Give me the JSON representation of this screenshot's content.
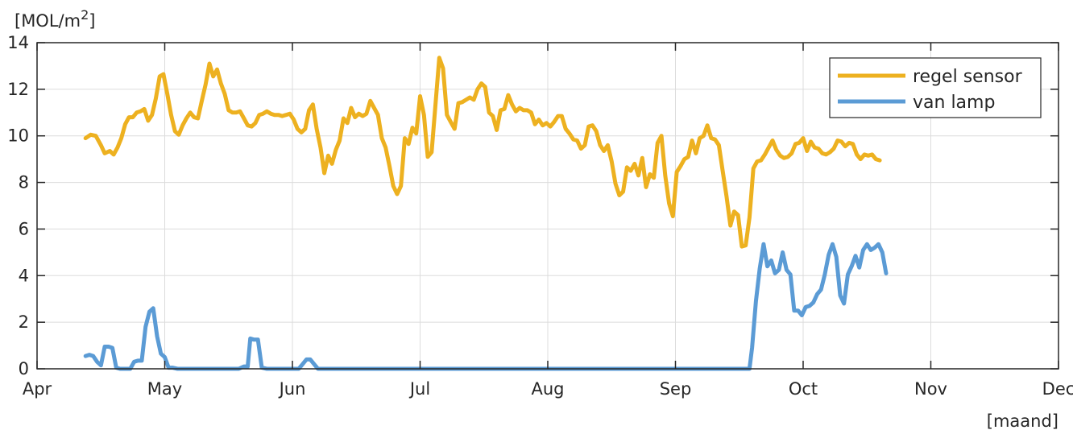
{
  "chart_data": {
    "type": "line",
    "title": "",
    "ylabel_base": "[MOL/m",
    "ylabel_sup": "2",
    "ylabel_end": "]",
    "xlabel": "[maand]",
    "xlim": [
      0,
      8
    ],
    "ylim": [
      0,
      14
    ],
    "grid": true,
    "legend_position": "top-right",
    "x_ticks": [
      0,
      1,
      2,
      3,
      4,
      5,
      6,
      7,
      8
    ],
    "x_tick_labels": [
      "Apr",
      "May",
      "Jun",
      "Jul",
      "Aug",
      "Sep",
      "Oct",
      "Nov",
      "Dec"
    ],
    "y_ticks": [
      0,
      2,
      4,
      6,
      8,
      10,
      12,
      14
    ],
    "y_tick_labels": [
      "0",
      "2",
      "4",
      "6",
      "8",
      "10",
      "12",
      "14"
    ],
    "series": [
      {
        "name": "regel sensor",
        "color": "#EDB120",
        "points": [
          [
            0.38,
            9.9
          ],
          [
            0.42,
            10.05
          ],
          [
            0.46,
            10.0
          ],
          [
            0.5,
            9.6
          ],
          [
            0.53,
            9.25
          ],
          [
            0.57,
            9.35
          ],
          [
            0.6,
            9.2
          ],
          [
            0.63,
            9.5
          ],
          [
            0.66,
            9.9
          ],
          [
            0.69,
            10.5
          ],
          [
            0.72,
            10.8
          ],
          [
            0.75,
            10.8
          ],
          [
            0.78,
            11.0
          ],
          [
            0.81,
            11.05
          ],
          [
            0.84,
            11.15
          ],
          [
            0.87,
            10.65
          ],
          [
            0.9,
            10.9
          ],
          [
            0.93,
            11.6
          ],
          [
            0.96,
            12.55
          ],
          [
            0.99,
            12.65
          ],
          [
            1.02,
            11.8
          ],
          [
            1.05,
            10.9
          ],
          [
            1.08,
            10.2
          ],
          [
            1.11,
            10.05
          ],
          [
            1.14,
            10.45
          ],
          [
            1.17,
            10.75
          ],
          [
            1.2,
            11.0
          ],
          [
            1.23,
            10.8
          ],
          [
            1.26,
            10.75
          ],
          [
            1.29,
            11.5
          ],
          [
            1.32,
            12.2
          ],
          [
            1.35,
            13.1
          ],
          [
            1.38,
            12.55
          ],
          [
            1.41,
            12.85
          ],
          [
            1.44,
            12.25
          ],
          [
            1.47,
            11.8
          ],
          [
            1.5,
            11.1
          ],
          [
            1.53,
            11.0
          ],
          [
            1.56,
            11.0
          ],
          [
            1.59,
            11.05
          ],
          [
            1.62,
            10.75
          ],
          [
            1.65,
            10.45
          ],
          [
            1.68,
            10.4
          ],
          [
            1.71,
            10.55
          ],
          [
            1.74,
            10.9
          ],
          [
            1.77,
            10.95
          ],
          [
            1.8,
            11.05
          ],
          [
            1.83,
            10.95
          ],
          [
            1.86,
            10.9
          ],
          [
            1.89,
            10.9
          ],
          [
            1.92,
            10.85
          ],
          [
            1.95,
            10.9
          ],
          [
            1.98,
            10.95
          ],
          [
            2.01,
            10.7
          ],
          [
            2.04,
            10.3
          ],
          [
            2.07,
            10.15
          ],
          [
            2.1,
            10.3
          ],
          [
            2.13,
            11.1
          ],
          [
            2.16,
            11.35
          ],
          [
            2.19,
            10.3
          ],
          [
            2.22,
            9.5
          ],
          [
            2.25,
            8.4
          ],
          [
            2.28,
            9.15
          ],
          [
            2.31,
            8.8
          ],
          [
            2.34,
            9.4
          ],
          [
            2.37,
            9.8
          ],
          [
            2.4,
            10.75
          ],
          [
            2.43,
            10.55
          ],
          [
            2.46,
            11.2
          ],
          [
            2.49,
            10.8
          ],
          [
            2.52,
            10.95
          ],
          [
            2.55,
            10.85
          ],
          [
            2.58,
            10.95
          ],
          [
            2.61,
            11.5
          ],
          [
            2.64,
            11.2
          ],
          [
            2.67,
            10.9
          ],
          [
            2.7,
            9.9
          ],
          [
            2.73,
            9.5
          ],
          [
            2.76,
            8.7
          ],
          [
            2.79,
            7.85
          ],
          [
            2.82,
            7.5
          ],
          [
            2.85,
            7.85
          ],
          [
            2.88,
            9.9
          ],
          [
            2.91,
            9.65
          ],
          [
            2.94,
            10.35
          ],
          [
            2.97,
            10.1
          ],
          [
            3.0,
            11.7
          ],
          [
            3.03,
            10.9
          ],
          [
            3.06,
            9.1
          ],
          [
            3.09,
            9.3
          ],
          [
            3.12,
            11.3
          ],
          [
            3.15,
            13.35
          ],
          [
            3.18,
            12.9
          ],
          [
            3.21,
            10.9
          ],
          [
            3.24,
            10.6
          ],
          [
            3.27,
            10.3
          ],
          [
            3.3,
            11.4
          ],
          [
            3.33,
            11.45
          ],
          [
            3.36,
            11.55
          ],
          [
            3.39,
            11.65
          ],
          [
            3.42,
            11.55
          ],
          [
            3.45,
            12.0
          ],
          [
            3.48,
            12.25
          ],
          [
            3.51,
            12.1
          ],
          [
            3.54,
            11.0
          ],
          [
            3.57,
            10.85
          ],
          [
            3.6,
            10.25
          ],
          [
            3.63,
            11.1
          ],
          [
            3.66,
            11.15
          ],
          [
            3.69,
            11.75
          ],
          [
            3.72,
            11.35
          ],
          [
            3.75,
            11.05
          ],
          [
            3.78,
            11.2
          ],
          [
            3.81,
            11.1
          ],
          [
            3.84,
            11.1
          ],
          [
            3.87,
            11.0
          ],
          [
            3.9,
            10.5
          ],
          [
            3.93,
            10.7
          ],
          [
            3.96,
            10.45
          ],
          [
            3.99,
            10.55
          ],
          [
            4.02,
            10.4
          ],
          [
            4.05,
            10.6
          ],
          [
            4.08,
            10.85
          ],
          [
            4.11,
            10.85
          ],
          [
            4.14,
            10.3
          ],
          [
            4.17,
            10.1
          ],
          [
            4.2,
            9.85
          ],
          [
            4.23,
            9.8
          ],
          [
            4.26,
            9.45
          ],
          [
            4.29,
            9.6
          ],
          [
            4.32,
            10.4
          ],
          [
            4.35,
            10.45
          ],
          [
            4.38,
            10.2
          ],
          [
            4.41,
            9.6
          ],
          [
            4.44,
            9.35
          ],
          [
            4.47,
            9.6
          ],
          [
            4.5,
            8.9
          ],
          [
            4.53,
            7.95
          ],
          [
            4.56,
            7.45
          ],
          [
            4.59,
            7.6
          ],
          [
            4.62,
            8.65
          ],
          [
            4.65,
            8.5
          ],
          [
            4.68,
            8.8
          ],
          [
            4.71,
            8.3
          ],
          [
            4.74,
            9.05
          ],
          [
            4.77,
            7.8
          ],
          [
            4.8,
            8.35
          ],
          [
            4.83,
            8.2
          ],
          [
            4.86,
            9.7
          ],
          [
            4.89,
            10.0
          ],
          [
            4.92,
            8.3
          ],
          [
            4.95,
            7.1
          ],
          [
            4.98,
            6.55
          ],
          [
            5.01,
            8.45
          ],
          [
            5.04,
            8.7
          ],
          [
            5.07,
            9.0
          ],
          [
            5.1,
            9.1
          ],
          [
            5.13,
            9.8
          ],
          [
            5.16,
            9.25
          ],
          [
            5.19,
            9.9
          ],
          [
            5.22,
            10.0
          ],
          [
            5.25,
            10.45
          ],
          [
            5.28,
            9.9
          ],
          [
            5.31,
            9.85
          ],
          [
            5.34,
            9.6
          ],
          [
            5.37,
            8.5
          ],
          [
            5.4,
            7.4
          ],
          [
            5.43,
            6.15
          ],
          [
            5.46,
            6.75
          ],
          [
            5.49,
            6.6
          ],
          [
            5.52,
            5.25
          ],
          [
            5.55,
            5.3
          ],
          [
            5.58,
            6.5
          ],
          [
            5.61,
            8.6
          ],
          [
            5.64,
            8.9
          ],
          [
            5.67,
            8.95
          ],
          [
            5.7,
            9.2
          ],
          [
            5.73,
            9.5
          ],
          [
            5.76,
            9.8
          ],
          [
            5.79,
            9.4
          ],
          [
            5.82,
            9.15
          ],
          [
            5.85,
            9.05
          ],
          [
            5.88,
            9.1
          ],
          [
            5.91,
            9.25
          ],
          [
            5.94,
            9.65
          ],
          [
            5.97,
            9.7
          ],
          [
            6.0,
            9.9
          ],
          [
            6.03,
            9.35
          ],
          [
            6.06,
            9.75
          ],
          [
            6.09,
            9.5
          ],
          [
            6.12,
            9.45
          ],
          [
            6.15,
            9.25
          ],
          [
            6.18,
            9.2
          ],
          [
            6.21,
            9.3
          ],
          [
            6.24,
            9.45
          ],
          [
            6.27,
            9.8
          ],
          [
            6.3,
            9.75
          ],
          [
            6.33,
            9.55
          ],
          [
            6.36,
            9.7
          ],
          [
            6.39,
            9.65
          ],
          [
            6.42,
            9.2
          ],
          [
            6.45,
            9.0
          ],
          [
            6.48,
            9.2
          ],
          [
            6.51,
            9.15
          ],
          [
            6.54,
            9.2
          ],
          [
            6.57,
            9.0
          ],
          [
            6.6,
            8.95
          ]
        ]
      },
      {
        "name": "van lamp",
        "color": "#5B9BD5",
        "points": [
          [
            0.38,
            0.55
          ],
          [
            0.41,
            0.6
          ],
          [
            0.44,
            0.55
          ],
          [
            0.47,
            0.3
          ],
          [
            0.5,
            0.15
          ],
          [
            0.53,
            0.95
          ],
          [
            0.56,
            0.95
          ],
          [
            0.59,
            0.9
          ],
          [
            0.62,
            0.05
          ],
          [
            0.65,
            0.0
          ],
          [
            0.7,
            0.0
          ],
          [
            0.73,
            0.0
          ],
          [
            0.76,
            0.3
          ],
          [
            0.79,
            0.35
          ],
          [
            0.82,
            0.35
          ],
          [
            0.85,
            1.8
          ],
          [
            0.88,
            2.45
          ],
          [
            0.91,
            2.6
          ],
          [
            0.94,
            1.4
          ],
          [
            0.97,
            0.65
          ],
          [
            1.0,
            0.5
          ],
          [
            1.03,
            0.05
          ],
          [
            1.06,
            0.05
          ],
          [
            1.1,
            0.0
          ],
          [
            1.5,
            0.0
          ],
          [
            1.58,
            0.0
          ],
          [
            1.62,
            0.1
          ],
          [
            1.65,
            0.1
          ],
          [
            1.67,
            1.3
          ],
          [
            1.7,
            1.25
          ],
          [
            1.73,
            1.25
          ],
          [
            1.76,
            0.05
          ],
          [
            1.8,
            0.0
          ],
          [
            2.05,
            0.0
          ],
          [
            2.08,
            0.2
          ],
          [
            2.11,
            0.4
          ],
          [
            2.14,
            0.4
          ],
          [
            2.17,
            0.2
          ],
          [
            2.2,
            0.0
          ],
          [
            2.5,
            0.0
          ],
          [
            5.55,
            0.0
          ],
          [
            5.58,
            0.0
          ],
          [
            5.6,
            0.9
          ],
          [
            5.63,
            2.9
          ],
          [
            5.66,
            4.3
          ],
          [
            5.69,
            5.35
          ],
          [
            5.72,
            4.4
          ],
          [
            5.75,
            4.65
          ],
          [
            5.78,
            4.1
          ],
          [
            5.81,
            4.25
          ],
          [
            5.84,
            5.0
          ],
          [
            5.87,
            4.25
          ],
          [
            5.9,
            4.05
          ],
          [
            5.93,
            2.5
          ],
          [
            5.96,
            2.5
          ],
          [
            5.99,
            2.3
          ],
          [
            6.02,
            2.65
          ],
          [
            6.05,
            2.7
          ],
          [
            6.08,
            2.85
          ],
          [
            6.11,
            3.2
          ],
          [
            6.14,
            3.4
          ],
          [
            6.17,
            4.05
          ],
          [
            6.2,
            4.9
          ],
          [
            6.23,
            5.35
          ],
          [
            6.26,
            4.8
          ],
          [
            6.29,
            3.15
          ],
          [
            6.32,
            2.8
          ],
          [
            6.35,
            4.05
          ],
          [
            6.38,
            4.4
          ],
          [
            6.41,
            4.85
          ],
          [
            6.44,
            4.35
          ],
          [
            6.47,
            5.1
          ],
          [
            6.5,
            5.35
          ],
          [
            6.53,
            5.1
          ],
          [
            6.56,
            5.2
          ],
          [
            6.59,
            5.35
          ],
          [
            6.62,
            5.0
          ],
          [
            6.65,
            4.1
          ]
        ]
      }
    ]
  }
}
